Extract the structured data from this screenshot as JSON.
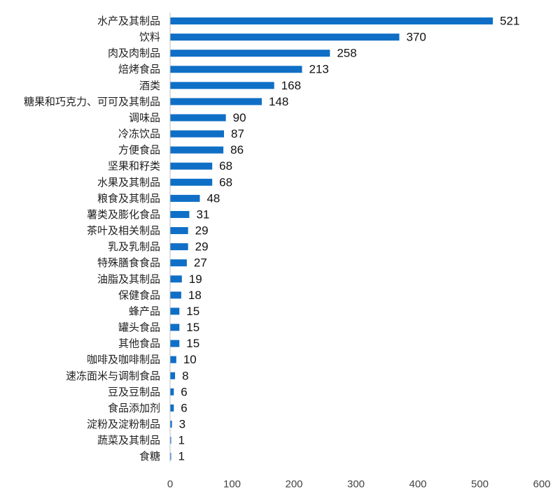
{
  "chart_data": {
    "type": "bar",
    "orientation": "horizontal",
    "categories": [
      "水产及其制品",
      "饮料",
      "肉及肉制品",
      "焙烤食品",
      "酒类",
      "糖果和巧克力、可可及其制品",
      "调味品",
      "冷冻饮品",
      "方便食品",
      "坚果和籽类",
      "水果及其制品",
      "粮食及其制品",
      "薯类及膨化食品",
      "茶叶及相关制品",
      "乳及乳制品",
      "特殊膳食食品",
      "油脂及其制品",
      "保健食品",
      "蜂产品",
      "罐头食品",
      "其他食品",
      "咖啡及咖啡制品",
      "速冻面米与调制食品",
      "豆及豆制品",
      "食品添加剂",
      "淀粉及淀粉制品",
      "蔬菜及其制品",
      "食糖"
    ],
    "values": [
      521,
      370,
      258,
      213,
      168,
      148,
      90,
      87,
      86,
      68,
      68,
      48,
      31,
      29,
      29,
      27,
      19,
      18,
      15,
      15,
      15,
      10,
      8,
      6,
      6,
      3,
      1,
      1
    ],
    "xlim": [
      0,
      600
    ],
    "xticks": [
      0,
      100,
      200,
      300,
      400,
      500,
      600
    ],
    "title": "",
    "xlabel": "",
    "ylabel": "",
    "grid": false,
    "legend": "none",
    "bar_color": "#0f6fc6",
    "axis_color": "#bfbfbf"
  }
}
